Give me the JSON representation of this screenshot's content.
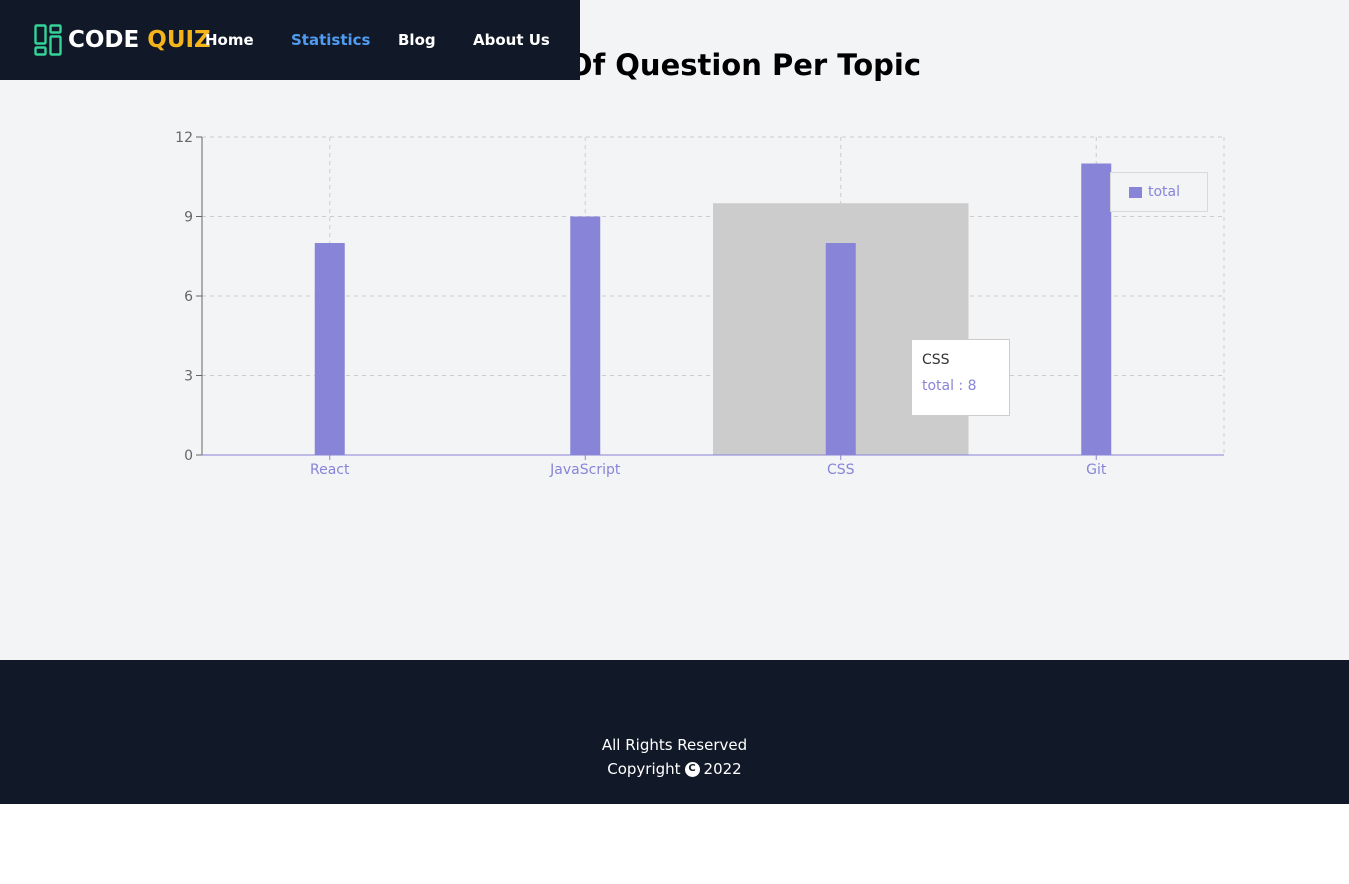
{
  "nav": {
    "logo_code": "CODE",
    "logo_quiz": "QUIZ",
    "links": [
      {
        "label": "Home",
        "active": false
      },
      {
        "label": "Statistics",
        "active": true
      },
      {
        "label": "Blog",
        "active": false
      },
      {
        "label": "About Us",
        "active": false
      }
    ]
  },
  "page": {
    "title": "Number Of Question Per Topic"
  },
  "chart_data": {
    "type": "bar",
    "title": "",
    "xlabel": "",
    "ylabel": "",
    "categories": [
      "React",
      "JavaScript",
      "CSS",
      "Git"
    ],
    "series": [
      {
        "name": "total",
        "values": [
          8,
          9,
          8,
          11
        ]
      }
    ],
    "ylim": [
      0,
      12
    ],
    "yticks": [
      "0",
      "3",
      "6",
      "9",
      "12"
    ],
    "grid": true,
    "legend_position": "top-right",
    "bar_color": "#8884d8",
    "hover_category": "CSS",
    "tooltip": {
      "label": "CSS",
      "value_text": "total : 8"
    }
  },
  "footer": {
    "line1": "All Rights Reserved",
    "copyright_prefix": "Copyright",
    "copyright_icon": "copyright-icon",
    "year": "2022"
  },
  "colors": {
    "navbar": "#111827",
    "accent_link": "#4f9cf0",
    "logo_quiz": "#f4b41a",
    "logo_icon": "#34d399",
    "bar": "#8884d8"
  }
}
